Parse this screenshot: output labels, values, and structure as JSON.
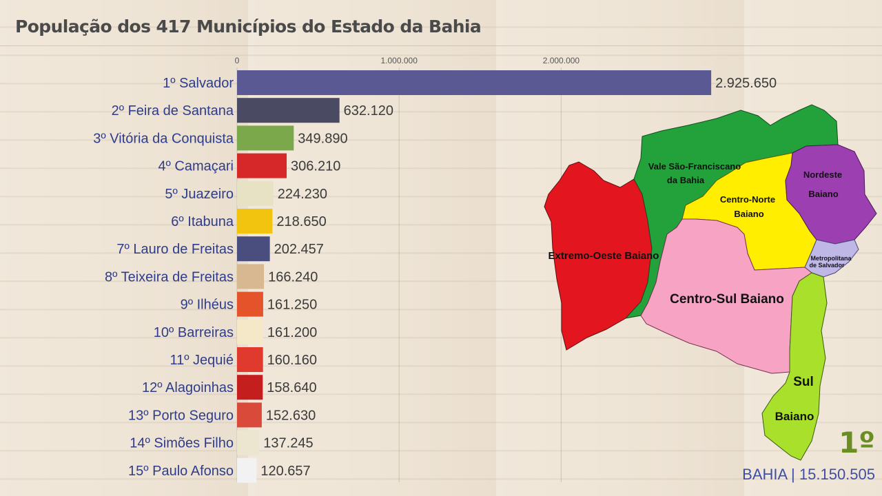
{
  "title": "População dos 417 Municípios do Estado da Bahia",
  "chart_data": {
    "type": "bar",
    "orientation": "horizontal",
    "title": "População dos 417 Municípios do Estado da Bahia",
    "categories": [
      "1º Salvador",
      "2º Feira de Santana",
      "3º Vitória da Conquista",
      "4º Camaçari",
      "5º Juazeiro",
      "6º Itabuna",
      "7º Lauro de Freitas",
      "8º Teixeira de Freitas",
      "9º Ilhéus",
      "10º Barreiras",
      "11º Jequié",
      "12º Alagoinhas",
      "13º Porto Seguro",
      "14º Simões Filho",
      "15º Paulo Afonso"
    ],
    "values": [
      2925650,
      632120,
      349890,
      306210,
      224230,
      218650,
      202457,
      166240,
      161250,
      161200,
      160160,
      158640,
      152630,
      137245,
      120657
    ],
    "value_labels": [
      "2.925.650",
      "632.120",
      "349.890",
      "306.210",
      "224.230",
      "218.650",
      "202.457",
      "166.240",
      "161.250",
      "161.200",
      "160.160",
      "158.640",
      "152.630",
      "137.245",
      "120.657"
    ],
    "x_ticks": [
      0,
      1000000,
      2000000
    ],
    "x_tick_labels": [
      "0",
      "1.000.000",
      "2.000.000"
    ],
    "grid": true,
    "bar_colors": [
      "#5b5994",
      "#4a4a62",
      "#7aa84a",
      "#d62828",
      "#e8e2c4",
      "#f2c40f",
      "#4a4e7e",
      "#d8b890",
      "#e5532a",
      "#f4e8c8",
      "#e03a2e",
      "#c41e1e",
      "#d94a3a",
      "#ece6d0",
      "#f2f2f2"
    ]
  },
  "map": {
    "regions": [
      {
        "name": "Extremo-Oeste Baiano",
        "color": "#e3151f"
      },
      {
        "name": "Vale São-Franciscano da Bahia",
        "lines": [
          "Vale São-Franciscano",
          "da Bahia"
        ],
        "color": "#23a23c"
      },
      {
        "name": "Centro-Norte Baiano",
        "lines": [
          "Centro-Norte",
          "Baiano"
        ],
        "color": "#ffee00"
      },
      {
        "name": "Nordeste Baiano",
        "lines": [
          "Nordeste",
          "Baiano"
        ],
        "color": "#9c3fb0"
      },
      {
        "name": "Metropolitana de Salvador",
        "lines": [
          "Metropolitana",
          "de Salvador"
        ],
        "color": "#bfb8e6"
      },
      {
        "name": "Centro-Sul Baiano",
        "color": "#f7a4c4"
      },
      {
        "name": "Sul Baiano",
        "lines": [
          "Sul",
          "Baiano"
        ],
        "color": "#a9e02b"
      }
    ]
  },
  "rank": "1º",
  "total": "BAHIA | 15.150.505"
}
